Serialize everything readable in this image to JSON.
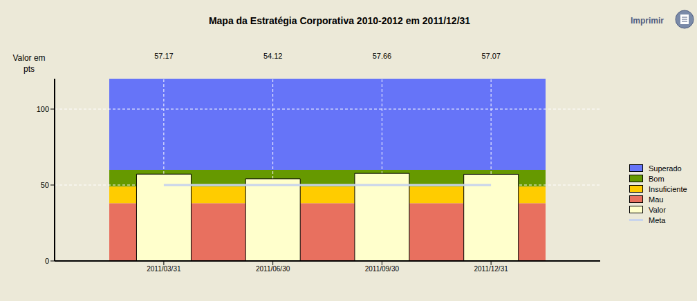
{
  "chart_data": {
    "type": "bar",
    "title": "Mapa da Estratégia Corporativa 2010-2012 em 2011/12/31",
    "y_label": "Valor em pts",
    "annotations": [
      "Imprimir"
    ],
    "categories": [
      "2011/03/31",
      "2011/06/30",
      "2011/09/30",
      "2011/12/31"
    ],
    "series": [
      {
        "name": "Valor",
        "type": "bar",
        "color": "#ffffcc",
        "values": [
          57.17,
          54.12,
          57.66,
          57.07
        ]
      },
      {
        "name": "Meta",
        "type": "line",
        "color": "#c8d4ec",
        "values": [
          50,
          50,
          50,
          50
        ]
      }
    ],
    "bands": [
      {
        "name": "Superado",
        "color": "#6674f8",
        "from": 60,
        "to": 120
      },
      {
        "name": "Bom",
        "color": "#669900",
        "from": 49,
        "to": 60
      },
      {
        "name": "Insuficiente",
        "color": "#ffcc00",
        "from": 38,
        "to": 49
      },
      {
        "name": "Mau",
        "color": "#e8705f",
        "from": 0,
        "to": 38
      }
    ],
    "ylim": [
      0,
      120
    ],
    "yticks": [
      0,
      50,
      100
    ],
    "grid": true,
    "legend": "right",
    "data_labels": true
  }
}
